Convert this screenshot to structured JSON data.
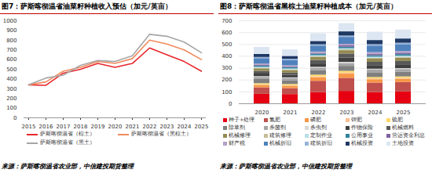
{
  "chart_data": [
    {
      "type": "line",
      "title": "图7：萨斯喀彻温省油菜籽种植收入预估（加元/英亩）",
      "x": [
        2015,
        2016,
        2017,
        2018,
        2019,
        2020,
        2021,
        2022,
        2023,
        2024,
        2025
      ],
      "series": [
        {
          "name": "萨斯喀彻温省（棕土）",
          "color": "#e8262a",
          "values": [
            340,
            335,
            460,
            500,
            560,
            520,
            560,
            720,
            650,
            580,
            480
          ]
        },
        {
          "name": "萨斯喀彻温省（黑棕土）",
          "color": "#f08a5d",
          "values": [
            340,
            370,
            480,
            520,
            580,
            560,
            610,
            800,
            760,
            700,
            600
          ]
        },
        {
          "name": "萨斯喀彻温省（黑土）",
          "color": "#a6a6a6",
          "values": [
            340,
            410,
            440,
            540,
            590,
            580,
            640,
            860,
            840,
            780,
            670
          ]
        }
      ],
      "xlim": [
        2015,
        2025
      ],
      "xticks": [
        2015,
        2016,
        2017,
        2018,
        2019,
        2020,
        2021,
        2022,
        2023,
        2024,
        2025
      ],
      "ylim": [
        0,
        1000
      ],
      "yticks": [
        0,
        100,
        200,
        300,
        400,
        500,
        600,
        700,
        800,
        900,
        1000
      ],
      "grid": false,
      "legend": "bottom",
      "caption": "来源：萨斯喀彻温省农业部，中信建投期货整理"
    },
    {
      "type": "bar",
      "stacked": true,
      "title": "图8：萨斯喀彻温省黑棕土油菜籽种植成本（加元/英亩）",
      "categories": [
        "2020",
        "2021",
        "2022",
        "2023",
        "2024",
        "2025"
      ],
      "series": [
        {
          "name": "种子+处理",
          "color": "#e60012",
          "values": [
            80,
            78,
            95,
            105,
            95,
            100
          ]
        },
        {
          "name": "氮肥",
          "color": "#c0504d",
          "values": [
            55,
            50,
            95,
            110,
            80,
            80
          ]
        },
        {
          "name": "磷肥",
          "color": "#f79646",
          "values": [
            20,
            20,
            30,
            35,
            28,
            28
          ]
        },
        {
          "name": "钾肥",
          "color": "#fac090",
          "values": [
            5,
            5,
            8,
            9,
            7,
            7
          ]
        },
        {
          "name": "硫肥",
          "color": "#ffd966",
          "values": [
            10,
            10,
            14,
            15,
            12,
            12
          ]
        },
        {
          "name": "除草剂",
          "color": "#7f7f7f",
          "values": [
            35,
            32,
            38,
            42,
            40,
            40
          ]
        },
        {
          "name": "杀菌剂",
          "color": "#a6a6a6",
          "values": [
            18,
            18,
            20,
            24,
            22,
            22
          ]
        },
        {
          "name": "杀虫剂",
          "color": "#d9d9d9",
          "values": [
            6,
            6,
            8,
            10,
            8,
            8
          ]
        },
        {
          "name": "作物保险",
          "color": "#404040",
          "values": [
            22,
            22,
            28,
            35,
            30,
            32
          ]
        },
        {
          "name": "机械燃料",
          "color": "#595959",
          "values": [
            22,
            18,
            30,
            35,
            28,
            28
          ]
        },
        {
          "name": "机械修理",
          "color": "#948a54",
          "values": [
            22,
            22,
            25,
            28,
            27,
            28
          ]
        },
        {
          "name": "建筑修理",
          "color": "#c4bd97",
          "values": [
            5,
            5,
            6,
            7,
            7,
            7
          ]
        },
        {
          "name": "定制作业",
          "color": "#b7dee8",
          "values": [
            8,
            8,
            9,
            10,
            10,
            10
          ]
        },
        {
          "name": "公用事业",
          "color": "#31859c",
          "values": [
            10,
            10,
            12,
            12,
            12,
            13
          ]
        },
        {
          "name": "营运资金利息",
          "color": "#8064a2",
          "values": [
            6,
            5,
            7,
            12,
            13,
            12
          ]
        },
        {
          "name": "财产税",
          "color": "#b3a2c7",
          "values": [
            12,
            12,
            12,
            13,
            13,
            14
          ]
        },
        {
          "name": "机械折旧",
          "color": "#4f81bd",
          "values": [
            45,
            45,
            50,
            58,
            55,
            58
          ]
        },
        {
          "name": "建筑折旧",
          "color": "#95b3d7",
          "values": [
            10,
            10,
            11,
            12,
            12,
            12
          ]
        },
        {
          "name": "机械投资",
          "color": "#1f3864",
          "values": [
            25,
            24,
            28,
            35,
            35,
            36
          ]
        },
        {
          "name": "土地投资",
          "color": "#dce6f2",
          "values": [
            60,
            55,
            65,
            70,
            70,
            75
          ]
        }
      ],
      "ylim": [
        0,
        700
      ],
      "yticks": [
        0,
        100,
        200,
        300,
        400,
        500,
        600,
        700
      ],
      "grid": true,
      "legend": "bottom",
      "caption": "来源：萨斯喀彻温省农业部，中信建投期货整理"
    }
  ]
}
